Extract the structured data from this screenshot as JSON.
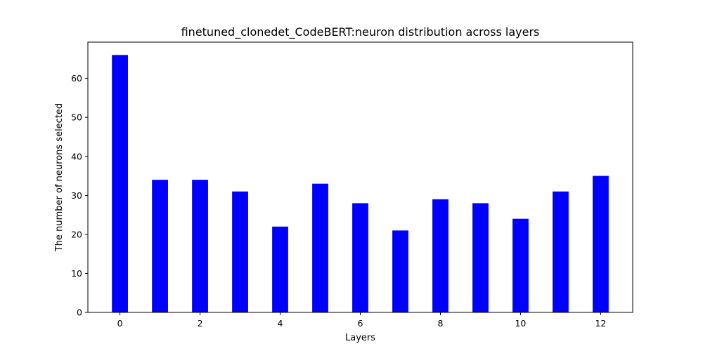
{
  "colors": {
    "bar": "#0000ff",
    "axis": "#000000",
    "background": "#ffffff"
  },
  "chart_data": {
    "type": "bar",
    "title": "finetuned_clonedet_CodeBERT:neuron distribution across layers",
    "xlabel": "Layers",
    "ylabel": "The number of neurons selected",
    "x": [
      0,
      1,
      2,
      3,
      4,
      5,
      6,
      7,
      8,
      9,
      10,
      11,
      12
    ],
    "values": [
      66,
      34,
      34,
      31,
      22,
      33,
      28,
      21,
      29,
      28,
      24,
      31,
      35
    ],
    "xticks": [
      0,
      2,
      4,
      6,
      8,
      10,
      12
    ],
    "yticks": [
      0,
      10,
      20,
      30,
      40,
      50,
      60
    ],
    "xlim": [
      -0.8,
      12.8
    ],
    "ylim": [
      0,
      69.3
    ],
    "grid": false,
    "legend": "none"
  }
}
